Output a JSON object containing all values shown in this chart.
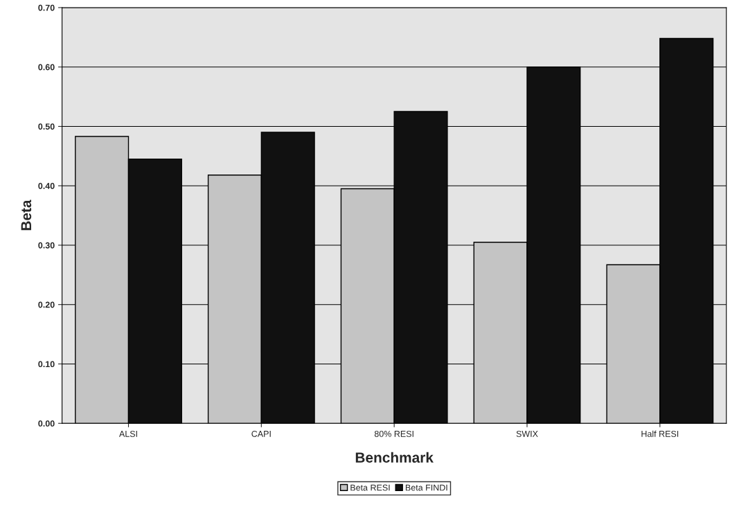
{
  "chart_data": {
    "type": "bar",
    "xlabel": "Benchmark",
    "ylabel": "Beta",
    "categories": [
      "ALSI",
      "CAPI",
      "80% RESI",
      "SWIX",
      "Half RESI"
    ],
    "series": [
      {
        "name": "Beta RESI",
        "color": "#c4c4c4",
        "values": [
          0.483,
          0.418,
          0.395,
          0.305,
          0.267
        ]
      },
      {
        "name": "Beta FINDI",
        "color": "#111111",
        "values": [
          0.445,
          0.49,
          0.525,
          0.6,
          0.648
        ]
      }
    ],
    "ylim": [
      0,
      0.7
    ],
    "yticks": [
      {
        "value": 0,
        "label": "0.00"
      },
      {
        "value": 0.1,
        "label": "0.10"
      },
      {
        "value": 0.2,
        "label": "0.20"
      },
      {
        "value": 0.3,
        "label": "0.30"
      },
      {
        "value": 0.4,
        "label": "0.40"
      },
      {
        "value": 0.5,
        "label": "0.50"
      },
      {
        "value": 0.6,
        "label": "0.60"
      },
      {
        "value": 0.7,
        "label": "0.70"
      }
    ],
    "grid": "y",
    "legend": "bottom"
  }
}
